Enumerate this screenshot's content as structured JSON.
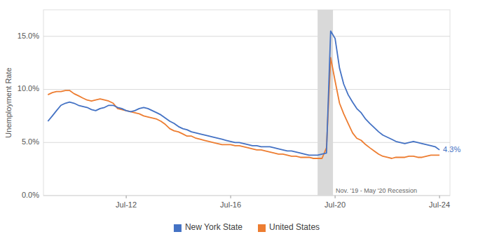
{
  "chart_data": {
    "type": "line",
    "y_label": "Unemployment Rate",
    "x": [
      2009.5,
      2009.67,
      2009.83,
      2010.0,
      2010.17,
      2010.33,
      2010.5,
      2010.67,
      2010.83,
      2011.0,
      2011.17,
      2011.33,
      2011.5,
      2011.67,
      2011.83,
      2012.0,
      2012.17,
      2012.33,
      2012.5,
      2012.67,
      2012.83,
      2013.0,
      2013.17,
      2013.33,
      2013.5,
      2013.67,
      2013.83,
      2014.0,
      2014.17,
      2014.33,
      2014.5,
      2014.67,
      2014.83,
      2015.0,
      2015.17,
      2015.33,
      2015.5,
      2015.67,
      2015.83,
      2016.0,
      2016.17,
      2016.33,
      2016.5,
      2016.67,
      2016.83,
      2017.0,
      2017.17,
      2017.33,
      2017.5,
      2017.67,
      2017.83,
      2018.0,
      2018.17,
      2018.33,
      2018.5,
      2018.67,
      2018.83,
      2019.0,
      2019.17,
      2019.33,
      2019.5,
      2019.67,
      2019.83,
      2020.0,
      2020.17,
      2020.33,
      2020.5,
      2020.67,
      2020.83,
      2021.0,
      2021.17,
      2021.33,
      2021.5,
      2021.67,
      2021.83,
      2022.0,
      2022.17,
      2022.33,
      2022.5,
      2022.67,
      2022.83,
      2023.0,
      2023.17,
      2023.33,
      2023.5,
      2023.67,
      2023.83,
      2024.0,
      2024.17,
      2024.33,
      2024.5
    ],
    "series": [
      {
        "name": "New York State",
        "color": "#4472C4",
        "values": [
          0.07,
          0.075,
          0.08,
          0.085,
          0.087,
          0.088,
          0.087,
          0.085,
          0.084,
          0.083,
          0.081,
          0.08,
          0.082,
          0.083,
          0.085,
          0.085,
          0.083,
          0.082,
          0.08,
          0.079,
          0.08,
          0.082,
          0.083,
          0.082,
          0.08,
          0.078,
          0.076,
          0.073,
          0.07,
          0.068,
          0.065,
          0.063,
          0.062,
          0.06,
          0.059,
          0.058,
          0.057,
          0.056,
          0.055,
          0.054,
          0.053,
          0.052,
          0.051,
          0.05,
          0.05,
          0.049,
          0.048,
          0.047,
          0.047,
          0.046,
          0.046,
          0.046,
          0.045,
          0.044,
          0.043,
          0.042,
          0.042,
          0.041,
          0.04,
          0.039,
          0.038,
          0.038,
          0.038,
          0.039,
          0.04,
          0.155,
          0.148,
          0.12,
          0.105,
          0.095,
          0.088,
          0.082,
          0.078,
          0.072,
          0.068,
          0.064,
          0.06,
          0.057,
          0.055,
          0.053,
          0.051,
          0.05,
          0.049,
          0.05,
          0.051,
          0.05,
          0.049,
          0.048,
          0.047,
          0.046,
          0.043
        ]
      },
      {
        "name": "United States",
        "color": "#ED7D31",
        "values": [
          0.095,
          0.097,
          0.098,
          0.098,
          0.099,
          0.099,
          0.096,
          0.094,
          0.092,
          0.09,
          0.089,
          0.09,
          0.091,
          0.09,
          0.089,
          0.087,
          0.082,
          0.081,
          0.08,
          0.079,
          0.078,
          0.077,
          0.075,
          0.074,
          0.073,
          0.072,
          0.07,
          0.067,
          0.063,
          0.061,
          0.06,
          0.058,
          0.056,
          0.056,
          0.054,
          0.053,
          0.052,
          0.051,
          0.05,
          0.049,
          0.048,
          0.048,
          0.048,
          0.047,
          0.047,
          0.046,
          0.045,
          0.044,
          0.043,
          0.043,
          0.042,
          0.041,
          0.04,
          0.039,
          0.039,
          0.038,
          0.037,
          0.037,
          0.036,
          0.036,
          0.036,
          0.035,
          0.035,
          0.035,
          0.045,
          0.13,
          0.108,
          0.087,
          0.077,
          0.068,
          0.059,
          0.054,
          0.052,
          0.048,
          0.045,
          0.042,
          0.039,
          0.037,
          0.036,
          0.035,
          0.036,
          0.036,
          0.036,
          0.037,
          0.037,
          0.036,
          0.036,
          0.037,
          0.038,
          0.038,
          0.038
        ]
      }
    ],
    "xlim": [
      2009.33,
      2024.9
    ],
    "xticks": [
      {
        "value": 2012.5,
        "label": "Jul-12"
      },
      {
        "value": 2016.5,
        "label": "Jul-16"
      },
      {
        "value": 2020.5,
        "label": "Jul-20"
      },
      {
        "value": 2024.5,
        "label": "Jul-24"
      }
    ],
    "ylim": [
      0.0,
      0.175
    ],
    "yticks": [
      {
        "value": 0.0,
        "label": "0.0%"
      },
      {
        "value": 0.05,
        "label": "5.0%"
      },
      {
        "value": 0.1,
        "label": "10.0%"
      },
      {
        "value": 0.15,
        "label": "15.0%"
      }
    ],
    "bands": [
      {
        "x0": 2019.83,
        "x1": 2020.42,
        "label": "Nov. '19 - May '20 Recession",
        "color": "#D9D9D9"
      }
    ],
    "annotations": [
      {
        "text": "4.3%",
        "x": 2024.5,
        "y": 0.043,
        "color": "#4472C4"
      }
    ],
    "grid": true,
    "legend": "bottom"
  }
}
